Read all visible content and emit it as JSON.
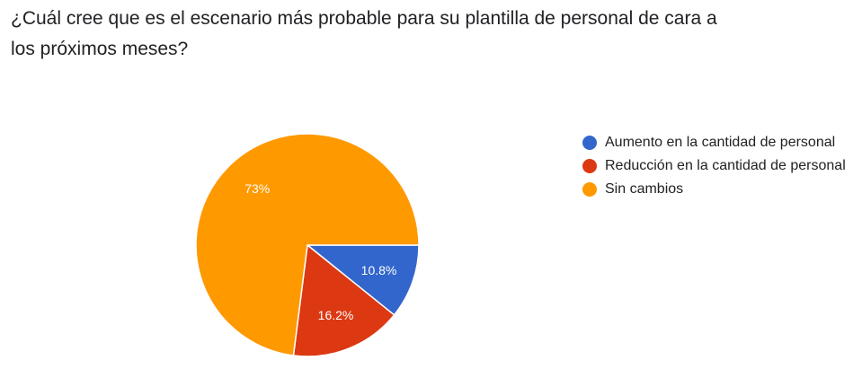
{
  "question": {
    "title": "¿Cuál cree que es el escenario más probable para su plantilla de personal de cara a los próximos meses?"
  },
  "chart_data": {
    "type": "pie",
    "categories": [
      "Aumento en la cantidad de personal",
      "Reducción en la cantidad de personal",
      "Sin cambios"
    ],
    "values": [
      10.8,
      16.2,
      73
    ],
    "data_labels": [
      "10.8%",
      "16.2%",
      "73%"
    ],
    "colors": [
      "#3366cc",
      "#dc3912",
      "#ff9900"
    ],
    "legend_position": "right",
    "title": ""
  }
}
